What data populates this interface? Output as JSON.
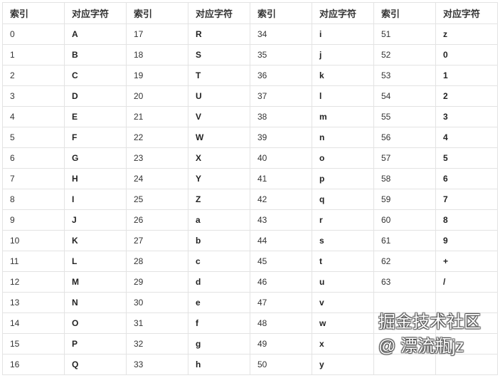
{
  "table": {
    "headers": [
      "索引",
      "对应字符",
      "索引",
      "对应字符",
      "索引",
      "对应字符",
      "索引",
      "对应字符"
    ],
    "rows": [
      [
        "0",
        "A",
        "17",
        "R",
        "34",
        "i",
        "51",
        "z"
      ],
      [
        "1",
        "B",
        "18",
        "S",
        "35",
        "j",
        "52",
        "0"
      ],
      [
        "2",
        "C",
        "19",
        "T",
        "36",
        "k",
        "53",
        "1"
      ],
      [
        "3",
        "D",
        "20",
        "U",
        "37",
        "l",
        "54",
        "2"
      ],
      [
        "4",
        "E",
        "21",
        "V",
        "38",
        "m",
        "55",
        "3"
      ],
      [
        "5",
        "F",
        "22",
        "W",
        "39",
        "n",
        "56",
        "4"
      ],
      [
        "6",
        "G",
        "23",
        "X",
        "40",
        "o",
        "57",
        "5"
      ],
      [
        "7",
        "H",
        "24",
        "Y",
        "41",
        "p",
        "58",
        "6"
      ],
      [
        "8",
        "I",
        "25",
        "Z",
        "42",
        "q",
        "59",
        "7"
      ],
      [
        "9",
        "J",
        "26",
        "a",
        "43",
        "r",
        "60",
        "8"
      ],
      [
        "10",
        "K",
        "27",
        "b",
        "44",
        "s",
        "61",
        "9"
      ],
      [
        "11",
        "L",
        "28",
        "c",
        "45",
        "t",
        "62",
        "+"
      ],
      [
        "12",
        "M",
        "29",
        "d",
        "46",
        "u",
        "63",
        "/"
      ],
      [
        "13",
        "N",
        "30",
        "e",
        "47",
        "v",
        "",
        ""
      ],
      [
        "14",
        "O",
        "31",
        "f",
        "48",
        "w",
        "",
        ""
      ],
      [
        "15",
        "P",
        "32",
        "g",
        "49",
        "x",
        "",
        ""
      ],
      [
        "16",
        "Q",
        "33",
        "h",
        "50",
        "y",
        "",
        ""
      ]
    ]
  },
  "watermark": "掘金技术社区 @ 漂流瓶jz"
}
